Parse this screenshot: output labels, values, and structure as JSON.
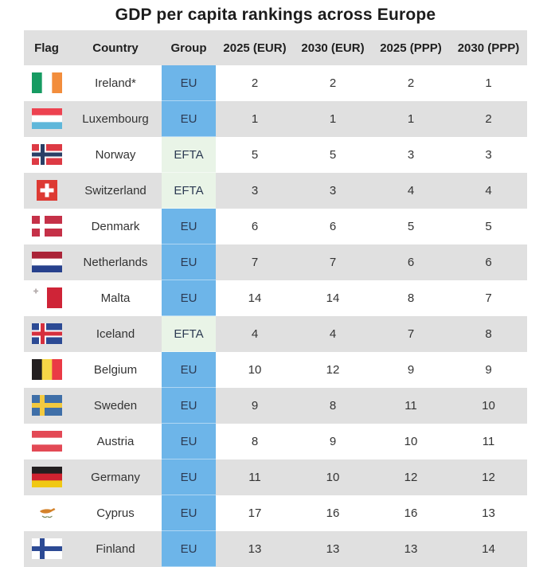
{
  "title": "GDP per capita rankings across Europe",
  "colors": {
    "eu_bg": "#6db5e9",
    "efta_bg": "#e9f4e7",
    "row_alt_bg": "#e0e0e0",
    "header_bg": "#e0e0e0",
    "group_text": "#2c3a52",
    "body_text": "#333333",
    "title_text": "#1c1c1c"
  },
  "chart_data": {
    "type": "table",
    "title": "GDP per capita rankings across Europe",
    "columns": [
      "Flag",
      "Country",
      "Group",
      "2025 (EUR)",
      "2030 (EUR)",
      "2025 (PPP)",
      "2030 (PPP)"
    ],
    "rows": [
      {
        "flag": "ireland",
        "country": "Ireland*",
        "group": "EU",
        "ranks": [
          "2",
          "2",
          "2",
          "1"
        ]
      },
      {
        "flag": "luxembourg",
        "country": "Luxembourg",
        "group": "EU",
        "ranks": [
          "1",
          "1",
          "1",
          "2"
        ]
      },
      {
        "flag": "norway",
        "country": "Norway",
        "group": "EFTA",
        "ranks": [
          "5",
          "5",
          "3",
          "3"
        ]
      },
      {
        "flag": "switzerland",
        "country": "Switzerland",
        "group": "EFTA",
        "ranks": [
          "3",
          "3",
          "4",
          "4"
        ]
      },
      {
        "flag": "denmark",
        "country": "Denmark",
        "group": "EU",
        "ranks": [
          "6",
          "6",
          "5",
          "5"
        ]
      },
      {
        "flag": "netherlands",
        "country": "Netherlands",
        "group": "EU",
        "ranks": [
          "7",
          "7",
          "6",
          "6"
        ]
      },
      {
        "flag": "malta",
        "country": "Malta",
        "group": "EU",
        "ranks": [
          "14",
          "14",
          "8",
          "7"
        ]
      },
      {
        "flag": "iceland",
        "country": "Iceland",
        "group": "EFTA",
        "ranks": [
          "4",
          "4",
          "7",
          "8"
        ]
      },
      {
        "flag": "belgium",
        "country": "Belgium",
        "group": "EU",
        "ranks": [
          "10",
          "12",
          "9",
          "9"
        ]
      },
      {
        "flag": "sweden",
        "country": "Sweden",
        "group": "EU",
        "ranks": [
          "9",
          "8",
          "11",
          "10"
        ]
      },
      {
        "flag": "austria",
        "country": "Austria",
        "group": "EU",
        "ranks": [
          "8",
          "9",
          "10",
          "11"
        ]
      },
      {
        "flag": "germany",
        "country": "Germany",
        "group": "EU",
        "ranks": [
          "11",
          "10",
          "12",
          "12"
        ]
      },
      {
        "flag": "cyprus",
        "country": "Cyprus",
        "group": "EU",
        "ranks": [
          "17",
          "16",
          "16",
          "13"
        ]
      },
      {
        "flag": "finland",
        "country": "Finland",
        "group": "EU",
        "ranks": [
          "13",
          "13",
          "13",
          "14"
        ]
      }
    ]
  },
  "flags": {
    "ireland": {
      "type": "vertical",
      "colors": [
        "#169b62",
        "#ffffff",
        "#f28d3c"
      ]
    },
    "luxembourg": {
      "type": "horizontal",
      "colors": [
        "#ed4250",
        "#ffffff",
        "#5fb7da"
      ]
    },
    "norway": {
      "type": "nordic",
      "field": "#dd3a44",
      "cross": "#2a3f66",
      "outline": "#ffffff"
    },
    "switzerland": {
      "type": "square-cross",
      "field": "#dd3a33",
      "cross": "#ffffff"
    },
    "denmark": {
      "type": "nordic",
      "field": "#c53148",
      "cross": "#ffffff"
    },
    "netherlands": {
      "type": "horizontal",
      "colors": [
        "#aa2438",
        "#ffffff",
        "#27418d"
      ]
    },
    "malta": {
      "type": "malta",
      "left": "#ffffff",
      "right": "#cf2437",
      "cross": "#b5adad"
    },
    "iceland": {
      "type": "nordic",
      "field": "#2c4a94",
      "cross": "#d6303e",
      "outline": "#ffffff"
    },
    "belgium": {
      "type": "vertical",
      "colors": [
        "#231f20",
        "#f6d647",
        "#ea3a45"
      ]
    },
    "sweden": {
      "type": "nordic",
      "field": "#3f6fa8",
      "cross": "#f2c93f"
    },
    "austria": {
      "type": "horizontal",
      "colors": [
        "#e34955",
        "#ffffff",
        "#e34955"
      ]
    },
    "germany": {
      "type": "horizontal",
      "colors": [
        "#231f20",
        "#cf2330",
        "#f0c814"
      ]
    },
    "cyprus": {
      "type": "cyprus",
      "island": "#d4822a",
      "branches": "#7a8a5a"
    },
    "finland": {
      "type": "nordic",
      "field": "#ffffff",
      "cross": "#2c4a94"
    }
  }
}
